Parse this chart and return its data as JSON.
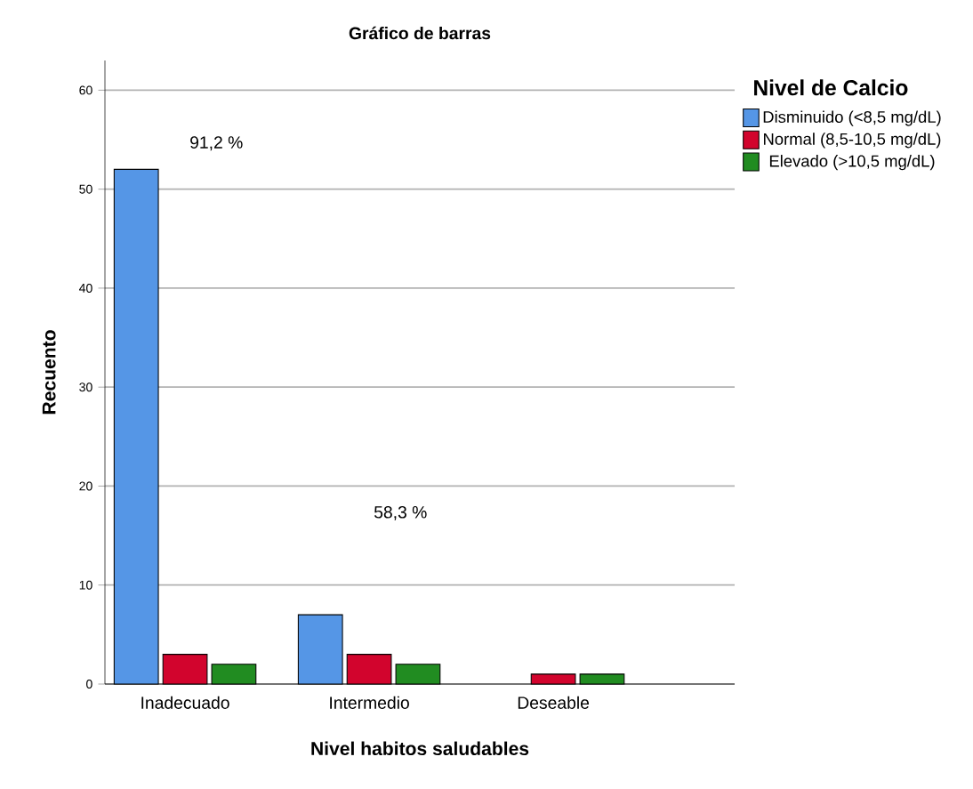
{
  "chart_data": {
    "type": "bar",
    "title": "Gráfico de barras",
    "xlabel": "Nivel habitos saludables",
    "ylabel": "Recuento",
    "legend_title": "Nivel de Calcio",
    "categories": [
      "Inadecuado",
      "Intermedio",
      "Deseable"
    ],
    "series": [
      {
        "name": "Disminuido (<8,5 mg/dL)",
        "color": "#5596e6",
        "values": [
          52,
          7,
          0
        ]
      },
      {
        "name": "Normal (8,5-10,5 mg/dL)",
        "color": "#d2042d",
        "values": [
          3,
          3,
          1
        ]
      },
      {
        "name": "Elevado (>10,5 mg/dL)",
        "color": "#218c21",
        "values": [
          2,
          2,
          1
        ]
      }
    ],
    "ylim": [
      0,
      63
    ],
    "yticks": [
      0,
      10,
      20,
      30,
      40,
      50,
      60
    ],
    "grid": "y",
    "legend": "top right",
    "annotations": [
      "91,2 %",
      "58,3 %"
    ]
  }
}
